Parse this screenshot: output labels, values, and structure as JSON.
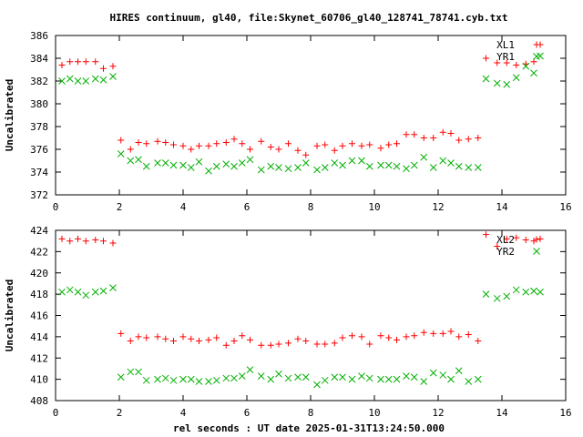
{
  "title": "HIRES continuum, gl40, file:Skynet_60706_gl40_128741_78741.cyb.txt",
  "xlabel": "rel seconds : UT date 2025-01-31T13:24:50.000",
  "colors": {
    "red": "#ff0000",
    "green": "#00b000",
    "axis": "#000000"
  },
  "chart_data": [
    {
      "type": "scatter",
      "ylabel": "Uncalibrated",
      "xlim": [
        0,
        16
      ],
      "ylim": [
        372,
        386
      ],
      "xticks": [
        "0",
        "2",
        "4",
        "6",
        "8",
        "10",
        "12",
        "14",
        "16"
      ],
      "yticks": [
        "372",
        "374",
        "376",
        "378",
        "380",
        "382",
        "384",
        "386"
      ],
      "legend_position": "top-right",
      "series": [
        {
          "name": "XL1",
          "marker": "plus",
          "color": "#ff0000",
          "x": [
            0.2,
            0.45,
            0.7,
            0.95,
            1.25,
            1.5,
            1.8,
            2.05,
            2.35,
            2.6,
            2.85,
            3.2,
            3.45,
            3.7,
            4.0,
            4.25,
            4.5,
            4.8,
            5.05,
            5.35,
            5.6,
            5.85,
            6.1,
            6.45,
            6.75,
            7.0,
            7.3,
            7.6,
            7.85,
            8.2,
            8.45,
            8.75,
            9.0,
            9.3,
            9.6,
            9.85,
            10.2,
            10.45,
            10.7,
            11.0,
            11.25,
            11.55,
            11.85,
            12.15,
            12.4,
            12.65,
            12.95,
            13.25,
            13.5,
            13.85,
            14.15,
            14.45,
            14.75,
            15.0,
            15.2
          ],
          "y": [
            383.4,
            383.7,
            383.7,
            383.7,
            383.7,
            383.1,
            383.3,
            376.8,
            376.0,
            376.6,
            376.5,
            376.7,
            376.6,
            376.4,
            376.3,
            376.0,
            376.3,
            376.3,
            376.5,
            376.6,
            376.9,
            376.5,
            376.0,
            376.7,
            376.2,
            376.0,
            376.5,
            375.9,
            375.5,
            376.3,
            376.4,
            375.9,
            376.3,
            376.5,
            376.3,
            376.4,
            376.1,
            376.4,
            376.5,
            377.3,
            377.3,
            377.0,
            377.0,
            377.5,
            377.4,
            376.8,
            376.9,
            377.0,
            384.0,
            383.6,
            383.6,
            383.4,
            383.5,
            383.7,
            385.2
          ]
        },
        {
          "name": "YR1",
          "marker": "x",
          "color": "#00b000",
          "x": [
            0.2,
            0.45,
            0.7,
            0.95,
            1.25,
            1.5,
            1.8,
            2.05,
            2.35,
            2.6,
            2.85,
            3.2,
            3.45,
            3.7,
            4.0,
            4.25,
            4.5,
            4.8,
            5.05,
            5.35,
            5.6,
            5.85,
            6.1,
            6.45,
            6.75,
            7.0,
            7.3,
            7.6,
            7.85,
            8.2,
            8.45,
            8.75,
            9.0,
            9.3,
            9.6,
            9.85,
            10.2,
            10.45,
            10.7,
            11.0,
            11.25,
            11.55,
            11.85,
            12.15,
            12.4,
            12.65,
            12.95,
            13.25,
            13.5,
            13.85,
            14.15,
            14.45,
            14.75,
            15.0,
            15.2
          ],
          "y": [
            382.0,
            382.2,
            382.0,
            382.0,
            382.2,
            382.1,
            382.4,
            375.6,
            375.0,
            375.1,
            374.5,
            374.8,
            374.8,
            374.6,
            374.6,
            374.4,
            374.9,
            374.1,
            374.5,
            374.7,
            374.5,
            374.8,
            375.1,
            374.2,
            374.5,
            374.4,
            374.3,
            374.4,
            374.8,
            374.2,
            374.4,
            374.8,
            374.6,
            375.0,
            375.0,
            374.5,
            374.6,
            374.6,
            374.5,
            374.3,
            374.6,
            375.3,
            374.4,
            375.0,
            374.8,
            374.5,
            374.4,
            374.4,
            382.2,
            381.8,
            381.7,
            382.3,
            383.3,
            382.7,
            384.2
          ]
        }
      ]
    },
    {
      "type": "scatter",
      "ylabel": "Uncalibrated",
      "xlim": [
        0,
        16
      ],
      "ylim": [
        408,
        424
      ],
      "xticks": [
        "0",
        "2",
        "4",
        "6",
        "8",
        "10",
        "12",
        "14",
        "16"
      ],
      "yticks": [
        "408",
        "410",
        "412",
        "414",
        "416",
        "418",
        "420",
        "422",
        "424"
      ],
      "legend_position": "top-right",
      "series": [
        {
          "name": "XL2",
          "marker": "plus",
          "color": "#ff0000",
          "x": [
            0.2,
            0.45,
            0.7,
            0.95,
            1.25,
            1.5,
            1.8,
            2.05,
            2.35,
            2.6,
            2.85,
            3.2,
            3.45,
            3.7,
            4.0,
            4.25,
            4.5,
            4.8,
            5.05,
            5.35,
            5.6,
            5.85,
            6.1,
            6.45,
            6.75,
            7.0,
            7.3,
            7.6,
            7.85,
            8.2,
            8.45,
            8.75,
            9.0,
            9.3,
            9.6,
            9.85,
            10.2,
            10.45,
            10.7,
            11.0,
            11.25,
            11.55,
            11.85,
            12.15,
            12.4,
            12.65,
            12.95,
            13.25,
            13.5,
            13.85,
            14.15,
            14.45,
            14.75,
            15.0,
            15.2
          ],
          "y": [
            423.2,
            423.0,
            423.2,
            423.0,
            423.1,
            423.0,
            422.8,
            414.3,
            413.6,
            414.0,
            413.9,
            414.0,
            413.8,
            413.6,
            414.0,
            413.8,
            413.6,
            413.7,
            413.9,
            413.2,
            413.6,
            414.1,
            413.7,
            413.2,
            413.2,
            413.3,
            413.4,
            413.8,
            413.6,
            413.3,
            413.3,
            413.4,
            413.9,
            414.1,
            414.0,
            413.3,
            414.1,
            413.9,
            413.7,
            414.0,
            414.1,
            414.4,
            414.3,
            414.3,
            414.5,
            414.0,
            414.2,
            413.6,
            423.6,
            422.5,
            423.2,
            423.3,
            423.1,
            423.0,
            423.2
          ]
        },
        {
          "name": "YR2",
          "marker": "x",
          "color": "#00b000",
          "x": [
            0.2,
            0.45,
            0.7,
            0.95,
            1.25,
            1.5,
            1.8,
            2.05,
            2.35,
            2.6,
            2.85,
            3.2,
            3.45,
            3.7,
            4.0,
            4.25,
            4.5,
            4.8,
            5.05,
            5.35,
            5.6,
            5.85,
            6.1,
            6.45,
            6.75,
            7.0,
            7.3,
            7.6,
            7.85,
            8.2,
            8.45,
            8.75,
            9.0,
            9.3,
            9.6,
            9.85,
            10.2,
            10.45,
            10.7,
            11.0,
            11.25,
            11.55,
            11.85,
            12.15,
            12.4,
            12.65,
            12.95,
            13.25,
            13.5,
            13.85,
            14.15,
            14.45,
            14.75,
            15.0,
            15.2
          ],
          "y": [
            418.2,
            418.4,
            418.2,
            417.9,
            418.2,
            418.3,
            418.6,
            410.2,
            410.7,
            410.7,
            409.9,
            410.0,
            410.1,
            409.9,
            410.0,
            410.0,
            409.8,
            409.8,
            409.9,
            410.1,
            410.1,
            410.3,
            410.9,
            410.3,
            410.0,
            410.5,
            410.1,
            410.2,
            410.2,
            409.5,
            409.9,
            410.2,
            410.2,
            410.0,
            410.3,
            410.1,
            410.0,
            410.0,
            410.0,
            410.3,
            410.2,
            409.8,
            410.6,
            410.4,
            410.0,
            410.8,
            409.8,
            410.0,
            418.0,
            417.6,
            417.8,
            418.4,
            418.2,
            418.3,
            418.2
          ]
        }
      ]
    }
  ]
}
